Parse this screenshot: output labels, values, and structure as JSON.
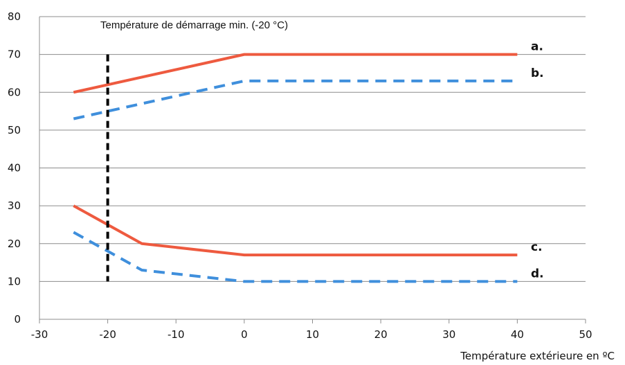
{
  "chart_data": {
    "type": "line",
    "xlabel": "Température extérieure en ºC",
    "ylabel": "",
    "xlim": [
      -30,
      50
    ],
    "ylim": [
      0,
      80
    ],
    "x_ticks": [
      -30,
      -20,
      -10,
      0,
      10,
      20,
      30,
      40,
      50
    ],
    "y_ticks": [
      0,
      10,
      20,
      30,
      40,
      50,
      60,
      70,
      80
    ],
    "grid": "horizontal",
    "annotation": {
      "text": "Température de démarrage min. (-20 °C)",
      "x": -20,
      "y_range": [
        10,
        70
      ],
      "color": "#000000"
    },
    "series": [
      {
        "name": "a.",
        "style": "solid",
        "color": "#ee5a3f",
        "x": [
          -25,
          0,
          40
        ],
        "y": [
          60,
          70,
          70
        ]
      },
      {
        "name": "b.",
        "style": "dashed",
        "color": "#3f8fdc",
        "x": [
          -25,
          0,
          40
        ],
        "y": [
          53,
          63,
          63
        ]
      },
      {
        "name": "c.",
        "style": "solid",
        "color": "#ee5a3f",
        "x": [
          -25,
          -15,
          0,
          40
        ],
        "y": [
          30,
          20,
          17,
          17
        ]
      },
      {
        "name": "d.",
        "style": "dashed",
        "color": "#3f8fdc",
        "x": [
          -25,
          -15,
          0,
          40
        ],
        "y": [
          23,
          13,
          10,
          10
        ]
      }
    ]
  }
}
